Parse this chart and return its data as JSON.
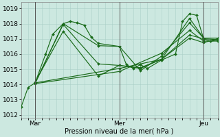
{
  "xlabel": "Pression niveau de la mer( hPa )",
  "ylim": [
    1011.8,
    1019.4
  ],
  "xlim": [
    0,
    56
  ],
  "yticks": [
    1012,
    1013,
    1014,
    1015,
    1016,
    1017,
    1018,
    1019
  ],
  "xtick_positions": [
    4,
    28,
    52
  ],
  "xtick_labels": [
    "Mar",
    "Mer",
    "Jeu"
  ],
  "vlines": [
    4,
    28,
    52
  ],
  "bg_color": "#cce8e0",
  "grid_color": "#aacfc8",
  "line_color": "#1a6b1a",
  "series": [
    [
      [
        0,
        1012.5
      ],
      [
        2,
        1013.8
      ],
      [
        4,
        1014.1
      ],
      [
        7,
        1016.0
      ],
      [
        9,
        1017.3
      ],
      [
        12,
        1018.0
      ],
      [
        14,
        1018.15
      ],
      [
        16,
        1018.05
      ],
      [
        18,
        1017.9
      ],
      [
        20,
        1017.1
      ],
      [
        22,
        1016.7
      ],
      [
        28,
        1016.5
      ],
      [
        30,
        1015.3
      ],
      [
        32,
        1015.05
      ],
      [
        34,
        1015.3
      ],
      [
        36,
        1015.05
      ],
      [
        40,
        1015.6
      ],
      [
        44,
        1016.0
      ],
      [
        46,
        1018.15
      ],
      [
        48,
        1018.65
      ],
      [
        50,
        1018.55
      ],
      [
        52,
        1017.0
      ],
      [
        54,
        1016.85
      ],
      [
        56,
        1016.9
      ]
    ],
    [
      [
        4,
        1014.05
      ],
      [
        12,
        1018.0
      ],
      [
        22,
        1016.55
      ],
      [
        28,
        1016.5
      ],
      [
        34,
        1014.9
      ],
      [
        40,
        1015.85
      ],
      [
        48,
        1018.05
      ],
      [
        52,
        1017.05
      ],
      [
        56,
        1017.05
      ]
    ],
    [
      [
        4,
        1014.1
      ],
      [
        12,
        1017.95
      ],
      [
        22,
        1015.35
      ],
      [
        28,
        1015.25
      ],
      [
        34,
        1015.05
      ],
      [
        40,
        1015.65
      ],
      [
        48,
        1018.35
      ],
      [
        52,
        1017.05
      ],
      [
        56,
        1017.05
      ]
    ],
    [
      [
        4,
        1014.15
      ],
      [
        12,
        1017.5
      ],
      [
        22,
        1014.55
      ],
      [
        28,
        1015.25
      ],
      [
        34,
        1015.1
      ],
      [
        40,
        1015.65
      ],
      [
        48,
        1017.25
      ],
      [
        52,
        1017.0
      ],
      [
        56,
        1016.95
      ]
    ],
    [
      [
        4,
        1014.1
      ],
      [
        28,
        1015.05
      ],
      [
        40,
        1015.65
      ],
      [
        48,
        1017.05
      ],
      [
        52,
        1016.75
      ],
      [
        56,
        1017.0
      ]
    ],
    [
      [
        4,
        1014.05
      ],
      [
        28,
        1014.85
      ],
      [
        40,
        1016.05
      ],
      [
        48,
        1017.55
      ],
      [
        52,
        1016.85
      ],
      [
        56,
        1016.85
      ]
    ]
  ]
}
